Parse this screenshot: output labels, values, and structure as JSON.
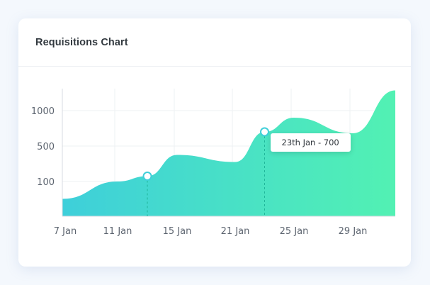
{
  "card": {
    "title": "Requisitions Chart"
  },
  "chart_data": {
    "type": "area",
    "title": "Requisitions Chart",
    "xlabel": "",
    "ylabel": "",
    "x_ticks": [
      "7 Jan",
      "11 Jan",
      "15 Jan",
      "21 Jan",
      "25 Jan",
      "29 Jan"
    ],
    "y_ticks": [
      "100",
      "500",
      "1000"
    ],
    "series": [
      {
        "x": [
          "7 Jan",
          "11 Jan",
          "13 Jan",
          "15 Jan",
          "21 Jan",
          "23 Jan",
          "25 Jan",
          "29 Jan",
          "31 Jan"
        ],
        "values": [
          50,
          100,
          160,
          400,
          320,
          700,
          900,
          680,
          1150
        ]
      }
    ],
    "highlight_points": [
      {
        "x": "13 Jan",
        "value": 160
      },
      {
        "x": "23 Jan",
        "value": 700
      }
    ],
    "tooltip": {
      "text": "23th Jan - 700"
    },
    "grid": true,
    "colors": {
      "gradient_top": "#52f1b3",
      "gradient_bottom": "#3ecfda",
      "point": "#3fcfd9"
    }
  }
}
